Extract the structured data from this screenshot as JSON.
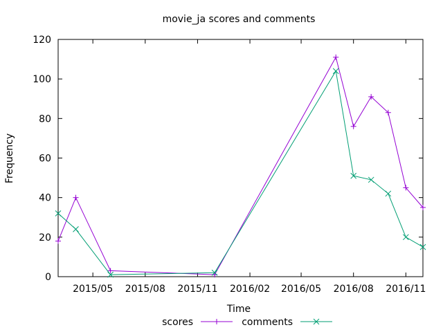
{
  "chart_data": {
    "type": "line",
    "title": "movie_ja scores and comments",
    "xlabel": "Time",
    "ylabel": "Frequency",
    "ylim": [
      0,
      120
    ],
    "yticks": [
      0,
      20,
      40,
      60,
      80,
      100,
      120
    ],
    "xlim": [
      "2015-03-01",
      "2016-12-01"
    ],
    "xticks": [
      {
        "label": "2015/05",
        "date": "2015-05-01"
      },
      {
        "label": "2015/08",
        "date": "2015-08-01"
      },
      {
        "label": "2015/11",
        "date": "2015-11-01"
      },
      {
        "label": "2016/02",
        "date": "2016-02-01"
      },
      {
        "label": "2016/05",
        "date": "2016-05-01"
      },
      {
        "label": "2016/08",
        "date": "2016-08-01"
      },
      {
        "label": "2016/11",
        "date": "2016-11-01"
      }
    ],
    "x": [
      "2015-03-01",
      "2015-04-01",
      "2015-06-01",
      "2015-12-01",
      "2016-07-01",
      "2016-08-01",
      "2016-09-01",
      "2016-10-01",
      "2016-11-01",
      "2016-12-01"
    ],
    "series": [
      {
        "name": "scores",
        "color": "#9400d3",
        "marker": "plus",
        "values": [
          18,
          40,
          3,
          1,
          111,
          76,
          91,
          83,
          45,
          35
        ]
      },
      {
        "name": "comments",
        "color": "#009e73",
        "marker": "cross",
        "values": [
          32,
          24,
          1,
          2,
          104,
          51,
          49,
          42,
          20,
          15
        ]
      }
    ],
    "grid": false,
    "legend_position": "bottom-center"
  }
}
